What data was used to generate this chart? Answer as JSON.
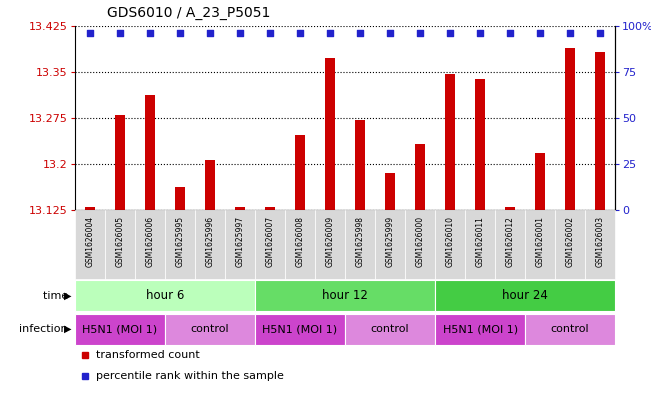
{
  "title": "GDS6010 / A_23_P5051",
  "samples": [
    "GSM1626004",
    "GSM1626005",
    "GSM1626006",
    "GSM1625995",
    "GSM1625996",
    "GSM1625997",
    "GSM1626007",
    "GSM1626008",
    "GSM1626009",
    "GSM1625998",
    "GSM1625999",
    "GSM1626000",
    "GSM1626010",
    "GSM1626011",
    "GSM1626012",
    "GSM1626001",
    "GSM1626002",
    "GSM1626003"
  ],
  "transformed_counts": [
    13.13,
    13.28,
    13.312,
    13.162,
    13.207,
    13.13,
    13.13,
    13.248,
    13.372,
    13.272,
    13.185,
    13.232,
    13.347,
    13.338,
    13.13,
    13.218,
    13.388,
    13.382
  ],
  "y_min": 13.125,
  "y_max": 13.425,
  "y_ticks": [
    13.125,
    13.2,
    13.275,
    13.35,
    13.425
  ],
  "y_tick_labels": [
    "13.125",
    "13.2",
    "13.275",
    "13.35",
    "13.425"
  ],
  "y2_ticks": [
    0,
    25,
    50,
    75,
    100
  ],
  "y2_tick_labels": [
    "0",
    "25",
    "50",
    "75",
    "100%"
  ],
  "bar_color": "#cc0000",
  "dot_color": "#2222cc",
  "time_groups": [
    {
      "label": "hour 6",
      "start": 0,
      "end": 6,
      "color": "#bbffbb"
    },
    {
      "label": "hour 12",
      "start": 6,
      "end": 12,
      "color": "#66dd66"
    },
    {
      "label": "hour 24",
      "start": 12,
      "end": 18,
      "color": "#44cc44"
    }
  ],
  "infection_groups": [
    {
      "label": "H5N1 (MOI 1)",
      "start": 0,
      "end": 3,
      "color": "#cc44cc"
    },
    {
      "label": "control",
      "start": 3,
      "end": 6,
      "color": "#dd88dd"
    },
    {
      "label": "H5N1 (MOI 1)",
      "start": 6,
      "end": 9,
      "color": "#cc44cc"
    },
    {
      "label": "control",
      "start": 9,
      "end": 12,
      "color": "#dd88dd"
    },
    {
      "label": "H5N1 (MOI 1)",
      "start": 12,
      "end": 15,
      "color": "#cc44cc"
    },
    {
      "label": "control",
      "start": 15,
      "end": 18,
      "color": "#dd88dd"
    }
  ],
  "legend_items": [
    {
      "label": "transformed count",
      "color": "#cc0000",
      "marker": "s"
    },
    {
      "label": "percentile rank within the sample",
      "color": "#2222cc",
      "marker": "s"
    }
  ],
  "background_color": "#ffffff"
}
